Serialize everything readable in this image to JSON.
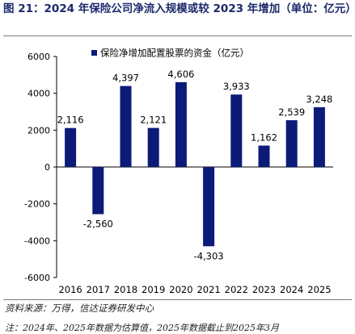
{
  "header": {
    "title": "图 21：2024 年保险公司净流入规模或较 2023 年增加（单位：亿元）"
  },
  "footer": {
    "source": "资料来源：万得，信达证券研发中心",
    "note": "注：2024年、2025年数据为估算值，2025年数据截止到2025年3月"
  },
  "chart_data": {
    "type": "bar",
    "title": "图 21：2024 年保险公司净流入规模或较 2023 年增加（单位：亿元）",
    "categories": [
      "2016",
      "2017",
      "2018",
      "2019",
      "2020",
      "2021",
      "2022",
      "2023",
      "2024",
      "2025"
    ],
    "series": [
      {
        "name": "保险净增加配置股票的资金（亿元）",
        "values": [
          2116,
          -2560,
          4397,
          2121,
          4606,
          -4303,
          3933,
          1162,
          2539,
          3248
        ],
        "data_labels": [
          "2,116",
          "-2,560",
          "4,397",
          "2,121",
          "4,606",
          "-4,303",
          "3,933",
          "1,162",
          "2,539",
          "3,248"
        ],
        "color": "#0c1a78"
      }
    ],
    "ylim": [
      -6000,
      6000
    ],
    "yticks": [
      -6000,
      -4000,
      -2000,
      0,
      2000,
      4000,
      6000
    ],
    "yticklabels": [
      "-6000",
      "-4000",
      "-2000",
      "0",
      "2000",
      "4000",
      "6000"
    ],
    "xlabel": "",
    "ylabel": "",
    "grid": false,
    "legend": "top-left"
  }
}
